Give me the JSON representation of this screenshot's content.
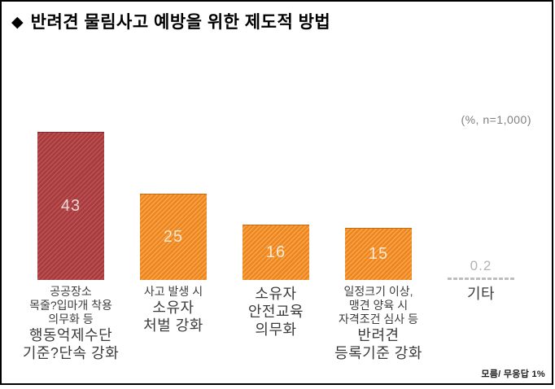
{
  "title": {
    "bullet": "◆",
    "text": "반려견 물림사고 예방을 위한 제도적 방법"
  },
  "unit_note": "(%, n=1,000)",
  "footnote": "모름/ 무응답 1%",
  "colors": {
    "highlight_bar_base": "#A73B3D",
    "highlight_bar_stripe": "#BC5456",
    "bar_base": "#EE8620",
    "bar_stripe": "#F8A74E",
    "value_text_on_red": "#EFD8D8",
    "value_text_on_orange": "#FAE9CF",
    "others_gray": "#B3B3B3",
    "note_gray": "#808080",
    "label_text": "#3C3C3C",
    "frame_border": "#000000"
  },
  "chart_data": {
    "type": "bar",
    "title": "반려견 물림사고 예방을 위한 제도적 방법",
    "unit_note": "(%, n=1,000)",
    "xlabel": "",
    "ylabel": "%",
    "ylim": [
      0,
      50
    ],
    "grid": false,
    "legend": "none",
    "footnote": "모름/ 무응답 1%",
    "categories": [
      "공공장소 목줄?입마개 착용 의무화 등 행동억제수단 기준?단속 강화",
      "사고 발생 시 소유자 처벌 강화",
      "소유자 안전교육 의무화",
      "일정크기 이상, 맹견 양육 시 자격조건 심사 등 반려견 등록기준 강화",
      "기타"
    ],
    "values": [
      43,
      25,
      16,
      15,
      0.2
    ],
    "bars": [
      {
        "value": 43,
        "value_label": "43",
        "highlight": true,
        "label_lines": [
          {
            "text": "공공장소",
            "size": "small"
          },
          {
            "text": "목줄?입마개 착용",
            "size": "small"
          },
          {
            "text": "의무화 등",
            "size": "small"
          },
          {
            "text": "행동억제수단",
            "size": "large"
          },
          {
            "text": "기준?단속 강화",
            "size": "large"
          }
        ]
      },
      {
        "value": 25,
        "value_label": "25",
        "highlight": false,
        "label_lines": [
          {
            "text": "사고 발생 시",
            "size": "small"
          },
          {
            "text": "소유자",
            "size": "large"
          },
          {
            "text": "처벌 강화",
            "size": "large"
          }
        ]
      },
      {
        "value": 16,
        "value_label": "16",
        "highlight": false,
        "label_lines": [
          {
            "text": "소유자",
            "size": "large"
          },
          {
            "text": "안전교육",
            "size": "large"
          },
          {
            "text": "의무화",
            "size": "large"
          }
        ]
      },
      {
        "value": 15,
        "value_label": "15",
        "highlight": false,
        "label_lines": [
          {
            "text": "일정크기 이상,",
            "size": "small"
          },
          {
            "text": "맹견 양육 시",
            "size": "small"
          },
          {
            "text": "자격조건 심사 등",
            "size": "small"
          },
          {
            "text": "반려견",
            "size": "large"
          },
          {
            "text": "등록기준 강화",
            "size": "large"
          }
        ]
      },
      {
        "value": 0.2,
        "value_label": "0.2",
        "highlight": false,
        "rendered_as": "dashed-line",
        "label_lines": [
          {
            "text": "기타",
            "size": "large"
          }
        ]
      }
    ]
  }
}
